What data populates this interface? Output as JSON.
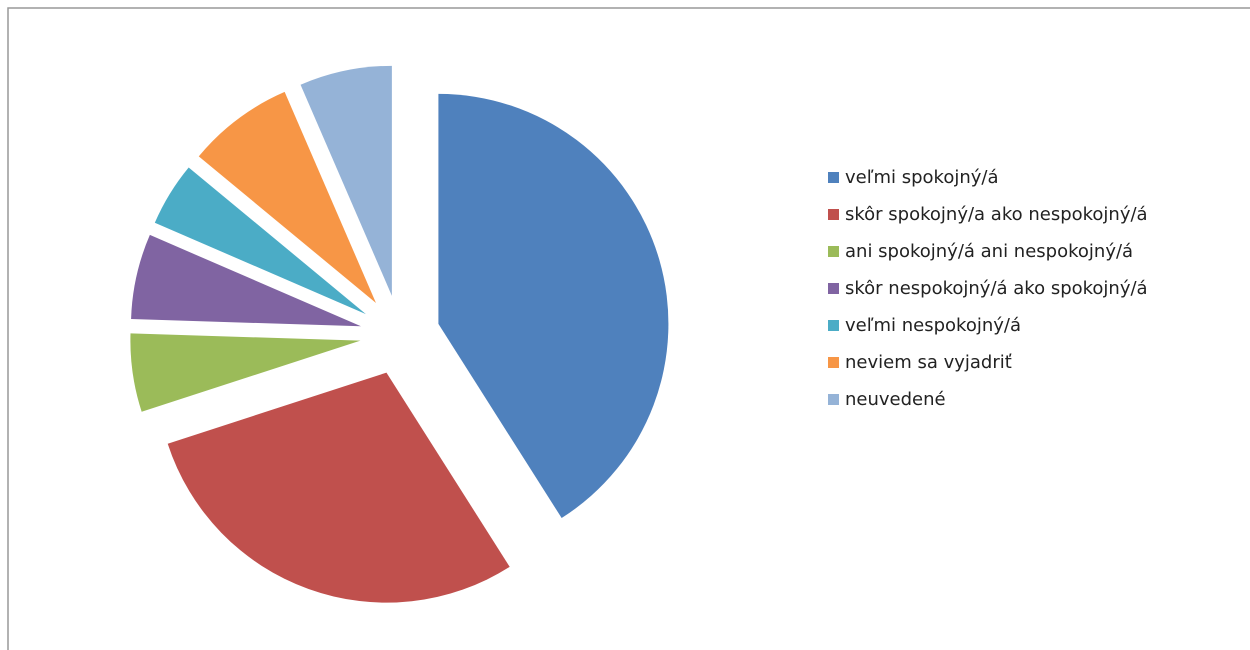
{
  "chart_data": {
    "type": "pie",
    "categories": [
      "veľmi spokojný/á",
      "skôr spokojný/a ako nespokojný/á",
      "ani spokojný/á ani nespokojný/á",
      "skôr nespokojný/á ako spokojný/á",
      "veľmi nespokojný/á",
      "neviem sa vyjadriť",
      "neuvedené"
    ],
    "values": [
      41,
      29,
      5.5,
      6,
      4.5,
      7.5,
      6.5
    ],
    "colors": [
      "#4f81bd",
      "#c0504d",
      "#9bbb59",
      "#8064a2",
      "#4bacc6",
      "#f79646",
      "#95b3d7"
    ],
    "legend": "right"
  }
}
